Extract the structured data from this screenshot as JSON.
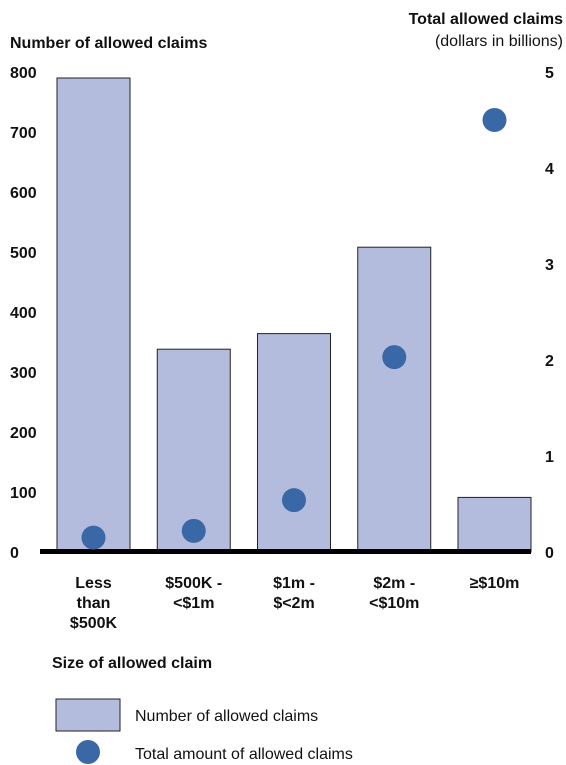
{
  "chart_data": {
    "type": "bar",
    "title": "",
    "ylabel_left": "Number of allowed claims",
    "ylabel_right_line1": "Total allowed claims",
    "ylabel_right_line2": "(dollars in billions)",
    "xlabel": "Size of allowed claim",
    "categories": [
      [
        "Less",
        "than",
        "$500K"
      ],
      [
        "$500K -",
        "<$1m"
      ],
      [
        "$1m -",
        "$<2m"
      ],
      [
        "$2m -",
        "<$10m"
      ],
      [
        "≥$10m"
      ]
    ],
    "ylim_left": [
      0,
      800
    ],
    "yticks_left": [
      "0",
      "100",
      "200",
      "300",
      "400",
      "500",
      "600",
      "700",
      "800"
    ],
    "ylim_right": [
      0,
      5
    ],
    "yticks_right": [
      "0",
      "1",
      "2",
      "3",
      "4",
      "5"
    ],
    "grid": false,
    "legend_position": "bottom",
    "series": [
      {
        "name": "Number of allowed claims",
        "kind": "bar",
        "axis": "left",
        "color": "#b4bcdd",
        "values": [
          790,
          338,
          364,
          508,
          91
        ]
      },
      {
        "name": "Total amount of allowed claims",
        "kind": "scatter",
        "axis": "right",
        "color": "#3a67a5",
        "values": [
          0.15,
          0.22,
          0.54,
          2.03,
          4.5
        ]
      }
    ]
  }
}
